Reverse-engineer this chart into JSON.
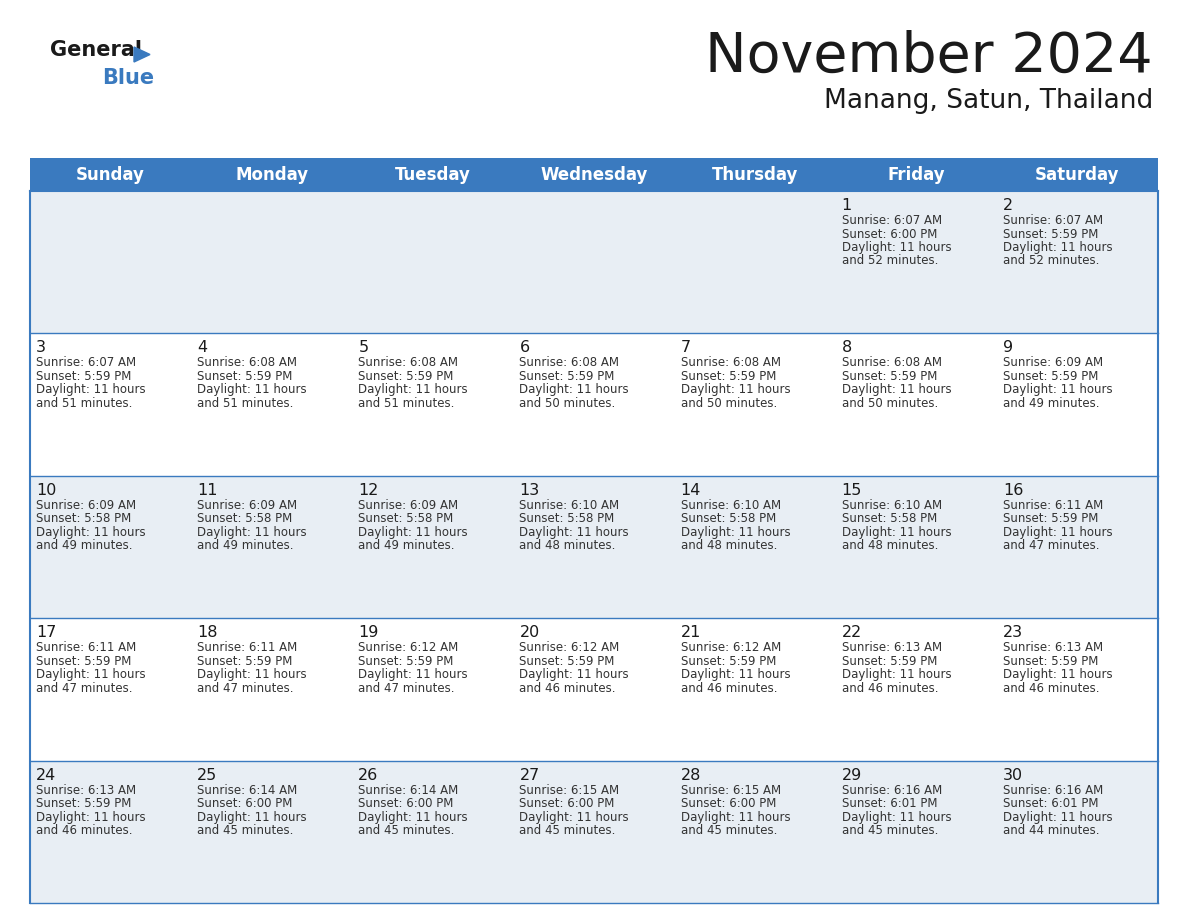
{
  "title": "November 2024",
  "subtitle": "Manang, Satun, Thailand",
  "header_color": "#3a7abf",
  "header_text_color": "#ffffff",
  "cell_bg_row0": "#e8eef4",
  "cell_bg_row1": "#ffffff",
  "cell_bg_row2": "#e8eef4",
  "cell_bg_row3": "#ffffff",
  "cell_bg_row4": "#e8eef4",
  "border_color": "#3a7abf",
  "text_color": "#333333",
  "day_num_color": "#1a1a1a",
  "day_names": [
    "Sunday",
    "Monday",
    "Tuesday",
    "Wednesday",
    "Thursday",
    "Friday",
    "Saturday"
  ],
  "days": [
    {
      "day": 1,
      "col": 5,
      "row": 0,
      "sunrise": "6:07 AM",
      "sunset": "6:00 PM",
      "daylight_h": "11 hours",
      "daylight_m": "and 52 minutes."
    },
    {
      "day": 2,
      "col": 6,
      "row": 0,
      "sunrise": "6:07 AM",
      "sunset": "5:59 PM",
      "daylight_h": "11 hours",
      "daylight_m": "and 52 minutes."
    },
    {
      "day": 3,
      "col": 0,
      "row": 1,
      "sunrise": "6:07 AM",
      "sunset": "5:59 PM",
      "daylight_h": "11 hours",
      "daylight_m": "and 51 minutes."
    },
    {
      "day": 4,
      "col": 1,
      "row": 1,
      "sunrise": "6:08 AM",
      "sunset": "5:59 PM",
      "daylight_h": "11 hours",
      "daylight_m": "and 51 minutes."
    },
    {
      "day": 5,
      "col": 2,
      "row": 1,
      "sunrise": "6:08 AM",
      "sunset": "5:59 PM",
      "daylight_h": "11 hours",
      "daylight_m": "and 51 minutes."
    },
    {
      "day": 6,
      "col": 3,
      "row": 1,
      "sunrise": "6:08 AM",
      "sunset": "5:59 PM",
      "daylight_h": "11 hours",
      "daylight_m": "and 50 minutes."
    },
    {
      "day": 7,
      "col": 4,
      "row": 1,
      "sunrise": "6:08 AM",
      "sunset": "5:59 PM",
      "daylight_h": "11 hours",
      "daylight_m": "and 50 minutes."
    },
    {
      "day": 8,
      "col": 5,
      "row": 1,
      "sunrise": "6:08 AM",
      "sunset": "5:59 PM",
      "daylight_h": "11 hours",
      "daylight_m": "and 50 minutes."
    },
    {
      "day": 9,
      "col": 6,
      "row": 1,
      "sunrise": "6:09 AM",
      "sunset": "5:59 PM",
      "daylight_h": "11 hours",
      "daylight_m": "and 49 minutes."
    },
    {
      "day": 10,
      "col": 0,
      "row": 2,
      "sunrise": "6:09 AM",
      "sunset": "5:58 PM",
      "daylight_h": "11 hours",
      "daylight_m": "and 49 minutes."
    },
    {
      "day": 11,
      "col": 1,
      "row": 2,
      "sunrise": "6:09 AM",
      "sunset": "5:58 PM",
      "daylight_h": "11 hours",
      "daylight_m": "and 49 minutes."
    },
    {
      "day": 12,
      "col": 2,
      "row": 2,
      "sunrise": "6:09 AM",
      "sunset": "5:58 PM",
      "daylight_h": "11 hours",
      "daylight_m": "and 49 minutes."
    },
    {
      "day": 13,
      "col": 3,
      "row": 2,
      "sunrise": "6:10 AM",
      "sunset": "5:58 PM",
      "daylight_h": "11 hours",
      "daylight_m": "and 48 minutes."
    },
    {
      "day": 14,
      "col": 4,
      "row": 2,
      "sunrise": "6:10 AM",
      "sunset": "5:58 PM",
      "daylight_h": "11 hours",
      "daylight_m": "and 48 minutes."
    },
    {
      "day": 15,
      "col": 5,
      "row": 2,
      "sunrise": "6:10 AM",
      "sunset": "5:58 PM",
      "daylight_h": "11 hours",
      "daylight_m": "and 48 minutes."
    },
    {
      "day": 16,
      "col": 6,
      "row": 2,
      "sunrise": "6:11 AM",
      "sunset": "5:59 PM",
      "daylight_h": "11 hours",
      "daylight_m": "and 47 minutes."
    },
    {
      "day": 17,
      "col": 0,
      "row": 3,
      "sunrise": "6:11 AM",
      "sunset": "5:59 PM",
      "daylight_h": "11 hours",
      "daylight_m": "and 47 minutes."
    },
    {
      "day": 18,
      "col": 1,
      "row": 3,
      "sunrise": "6:11 AM",
      "sunset": "5:59 PM",
      "daylight_h": "11 hours",
      "daylight_m": "and 47 minutes."
    },
    {
      "day": 19,
      "col": 2,
      "row": 3,
      "sunrise": "6:12 AM",
      "sunset": "5:59 PM",
      "daylight_h": "11 hours",
      "daylight_m": "and 47 minutes."
    },
    {
      "day": 20,
      "col": 3,
      "row": 3,
      "sunrise": "6:12 AM",
      "sunset": "5:59 PM",
      "daylight_h": "11 hours",
      "daylight_m": "and 46 minutes."
    },
    {
      "day": 21,
      "col": 4,
      "row": 3,
      "sunrise": "6:12 AM",
      "sunset": "5:59 PM",
      "daylight_h": "11 hours",
      "daylight_m": "and 46 minutes."
    },
    {
      "day": 22,
      "col": 5,
      "row": 3,
      "sunrise": "6:13 AM",
      "sunset": "5:59 PM",
      "daylight_h": "11 hours",
      "daylight_m": "and 46 minutes."
    },
    {
      "day": 23,
      "col": 6,
      "row": 3,
      "sunrise": "6:13 AM",
      "sunset": "5:59 PM",
      "daylight_h": "11 hours",
      "daylight_m": "and 46 minutes."
    },
    {
      "day": 24,
      "col": 0,
      "row": 4,
      "sunrise": "6:13 AM",
      "sunset": "5:59 PM",
      "daylight_h": "11 hours",
      "daylight_m": "and 46 minutes."
    },
    {
      "day": 25,
      "col": 1,
      "row": 4,
      "sunrise": "6:14 AM",
      "sunset": "6:00 PM",
      "daylight_h": "11 hours",
      "daylight_m": "and 45 minutes."
    },
    {
      "day": 26,
      "col": 2,
      "row": 4,
      "sunrise": "6:14 AM",
      "sunset": "6:00 PM",
      "daylight_h": "11 hours",
      "daylight_m": "and 45 minutes."
    },
    {
      "day": 27,
      "col": 3,
      "row": 4,
      "sunrise": "6:15 AM",
      "sunset": "6:00 PM",
      "daylight_h": "11 hours",
      "daylight_m": "and 45 minutes."
    },
    {
      "day": 28,
      "col": 4,
      "row": 4,
      "sunrise": "6:15 AM",
      "sunset": "6:00 PM",
      "daylight_h": "11 hours",
      "daylight_m": "and 45 minutes."
    },
    {
      "day": 29,
      "col": 5,
      "row": 4,
      "sunrise": "6:16 AM",
      "sunset": "6:01 PM",
      "daylight_h": "11 hours",
      "daylight_m": "and 45 minutes."
    },
    {
      "day": 30,
      "col": 6,
      "row": 4,
      "sunrise": "6:16 AM",
      "sunset": "6:01 PM",
      "daylight_h": "11 hours",
      "daylight_m": "and 44 minutes."
    }
  ],
  "num_rows": 5,
  "num_cols": 7,
  "fig_width": 11.88,
  "fig_height": 9.18,
  "dpi": 100
}
